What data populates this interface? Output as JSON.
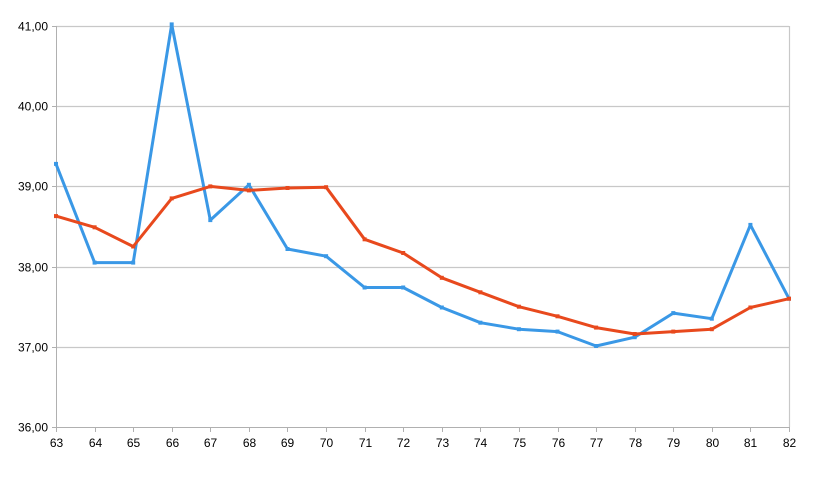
{
  "chart_data": {
    "type": "line",
    "title": "",
    "xlabel": "",
    "ylabel": "",
    "x": [
      "63",
      "64",
      "65",
      "66",
      "67",
      "68",
      "69",
      "70",
      "71",
      "72",
      "73",
      "74",
      "75",
      "76",
      "77",
      "78",
      "79",
      "80",
      "81",
      "82"
    ],
    "ylim": [
      36,
      41
    ],
    "y_ticks": [
      36,
      37,
      38,
      39,
      40,
      41
    ],
    "y_tick_labels": [
      "36,00",
      "37,00",
      "38,00",
      "39,00",
      "40,00",
      "41,00"
    ],
    "grid": true,
    "legend": "none",
    "series": [
      {
        "color": "#3a98e6",
        "values": [
          39.28,
          38.05,
          38.05,
          41.02,
          38.58,
          39.02,
          38.22,
          38.13,
          37.74,
          37.74,
          37.49,
          37.3,
          37.22,
          37.19,
          37.01,
          37.12,
          37.42,
          37.35,
          38.52,
          37.6
        ]
      },
      {
        "color": "#e8491d",
        "values": [
          38.63,
          38.49,
          38.25,
          38.85,
          39.0,
          38.95,
          38.98,
          38.99,
          38.34,
          38.17,
          37.86,
          37.68,
          37.5,
          37.38,
          37.24,
          37.16,
          37.19,
          37.22,
          37.49,
          37.6
        ]
      }
    ]
  }
}
